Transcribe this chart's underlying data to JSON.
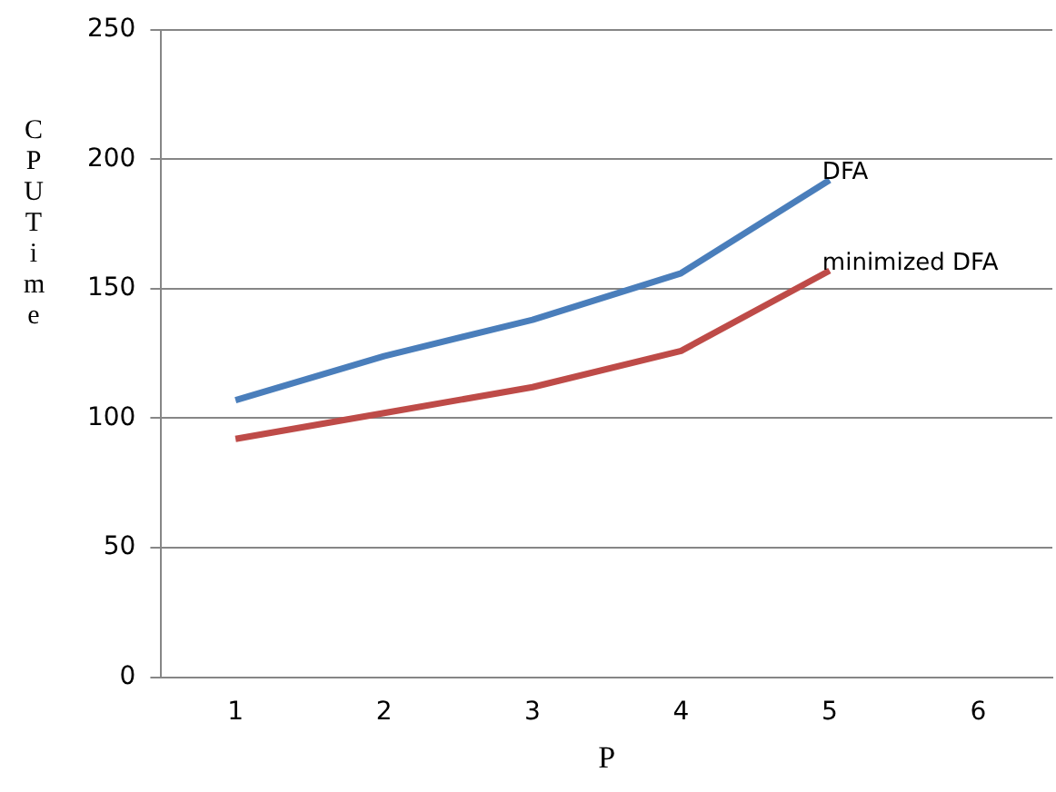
{
  "chart_data": {
    "type": "line",
    "xlabel": "P",
    "ylabel": "CPU Time",
    "categories": [
      "1",
      "2",
      "3",
      "4",
      "5",
      "6"
    ],
    "series": [
      {
        "name": "DFA",
        "color": "#4a7ebb",
        "values": [
          107,
          124,
          138,
          156,
          192,
          null
        ]
      },
      {
        "name": "minimized DFA",
        "color": "#be4b48",
        "values": [
          92,
          102,
          112,
          126,
          157,
          null
        ]
      }
    ],
    "ylim": [
      0,
      250
    ],
    "yticks": [
      0,
      50,
      100,
      150,
      200,
      250
    ],
    "grid": "y",
    "legend": false,
    "marker": "none",
    "line_style": "solid"
  }
}
